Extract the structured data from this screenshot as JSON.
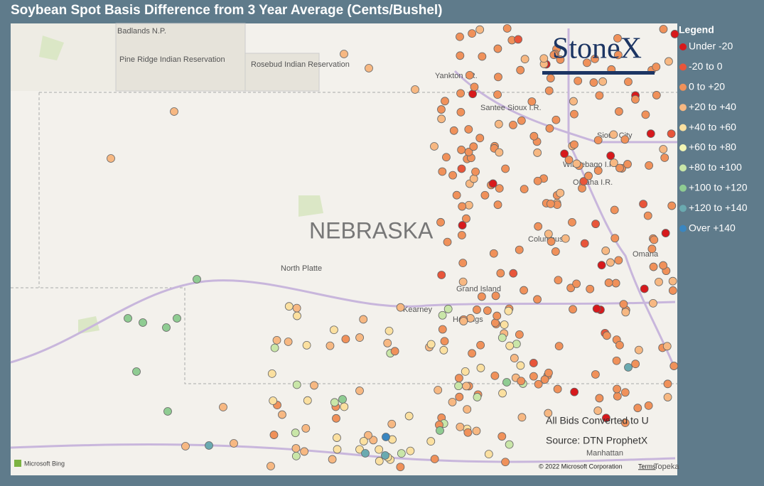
{
  "header": {
    "title": "Soybean Spot Basis Difference from 3 Year Average (Cents/Bushel)"
  },
  "legend": {
    "title": "Legend",
    "items": [
      {
        "label": "Under -20",
        "color": "#d7191c"
      },
      {
        "label": "-20 to 0",
        "color": "#e8553a"
      },
      {
        "label": "0 to +20",
        "color": "#f0915a"
      },
      {
        "label": "+20 to +40",
        "color": "#f7b882"
      },
      {
        "label": "+40 to +60",
        "color": "#fbe0a0"
      },
      {
        "label": "+60 to +80",
        "color": "#f3f5b4"
      },
      {
        "label": "+80 to +100",
        "color": "#c9e6a8"
      },
      {
        "label": "+100 to +120",
        "color": "#8fcc92"
      },
      {
        "label": "+120 to +140",
        "color": "#6aaab0"
      },
      {
        "label": "Over +140",
        "color": "#3a86c0"
      }
    ]
  },
  "map": {
    "labels": [
      "Badlands N.P.",
      "Pine Ridge Indian Reservation",
      "Rosebud Indian Reservation",
      "Yankton I.R.",
      "Santee Sioux I.R.",
      "Sioux City",
      "Winnebago I.R.",
      "Omaha I.R.",
      "NEBRASKA",
      "Columbus",
      "Omaha",
      "North Platte",
      "Grand Island",
      "Kearney",
      "Hastings",
      "Manhattan",
      "Topeka"
    ],
    "logo": "StoneX",
    "note": "All Bids Converted to U",
    "source": "Source: DTN ProphetX",
    "bing": "Microsoft Bing",
    "copyright": "© 2022 Microsoft Corporation",
    "terms": "Terms"
  }
}
